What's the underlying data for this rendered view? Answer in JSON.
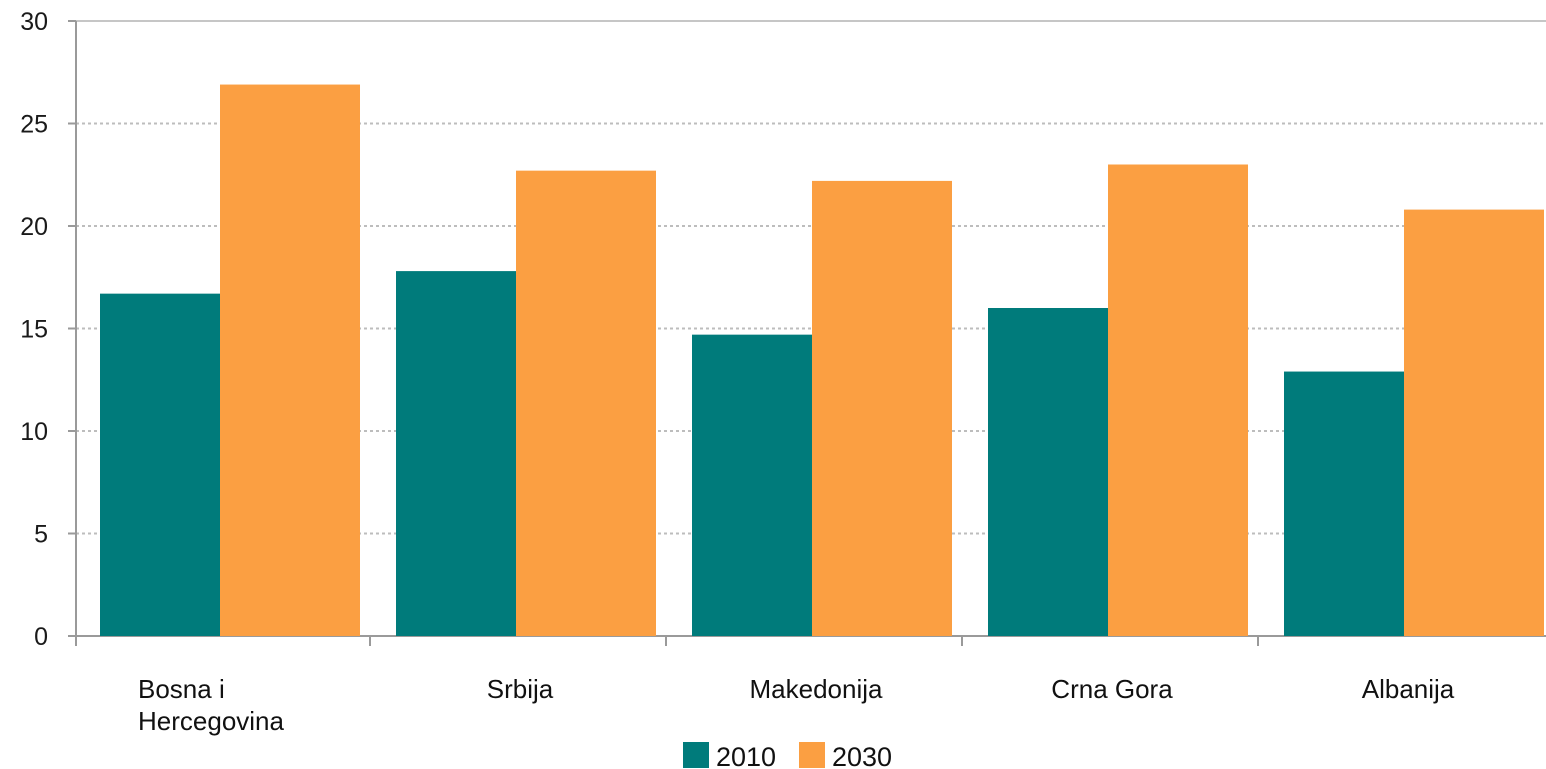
{
  "chart_data": {
    "type": "bar",
    "categories": [
      [
        "Bosna i",
        "Hercegovina"
      ],
      [
        "Srbija"
      ],
      [
        "Makedonija"
      ],
      [
        "Crna Gora"
      ],
      [
        "Albanija"
      ]
    ],
    "series": [
      {
        "name": "2010",
        "color": "#007b7b",
        "values": [
          16.7,
          17.8,
          14.7,
          16.0,
          12.9
        ]
      },
      {
        "name": "2030",
        "color": "#fb9f42",
        "values": [
          26.9,
          22.7,
          22.2,
          23.0,
          20.8
        ]
      }
    ],
    "ylim": [
      0,
      30
    ],
    "yticks": [
      0,
      5,
      10,
      15,
      20,
      25,
      30
    ],
    "grid": true,
    "legend_position": "bottom-center"
  }
}
